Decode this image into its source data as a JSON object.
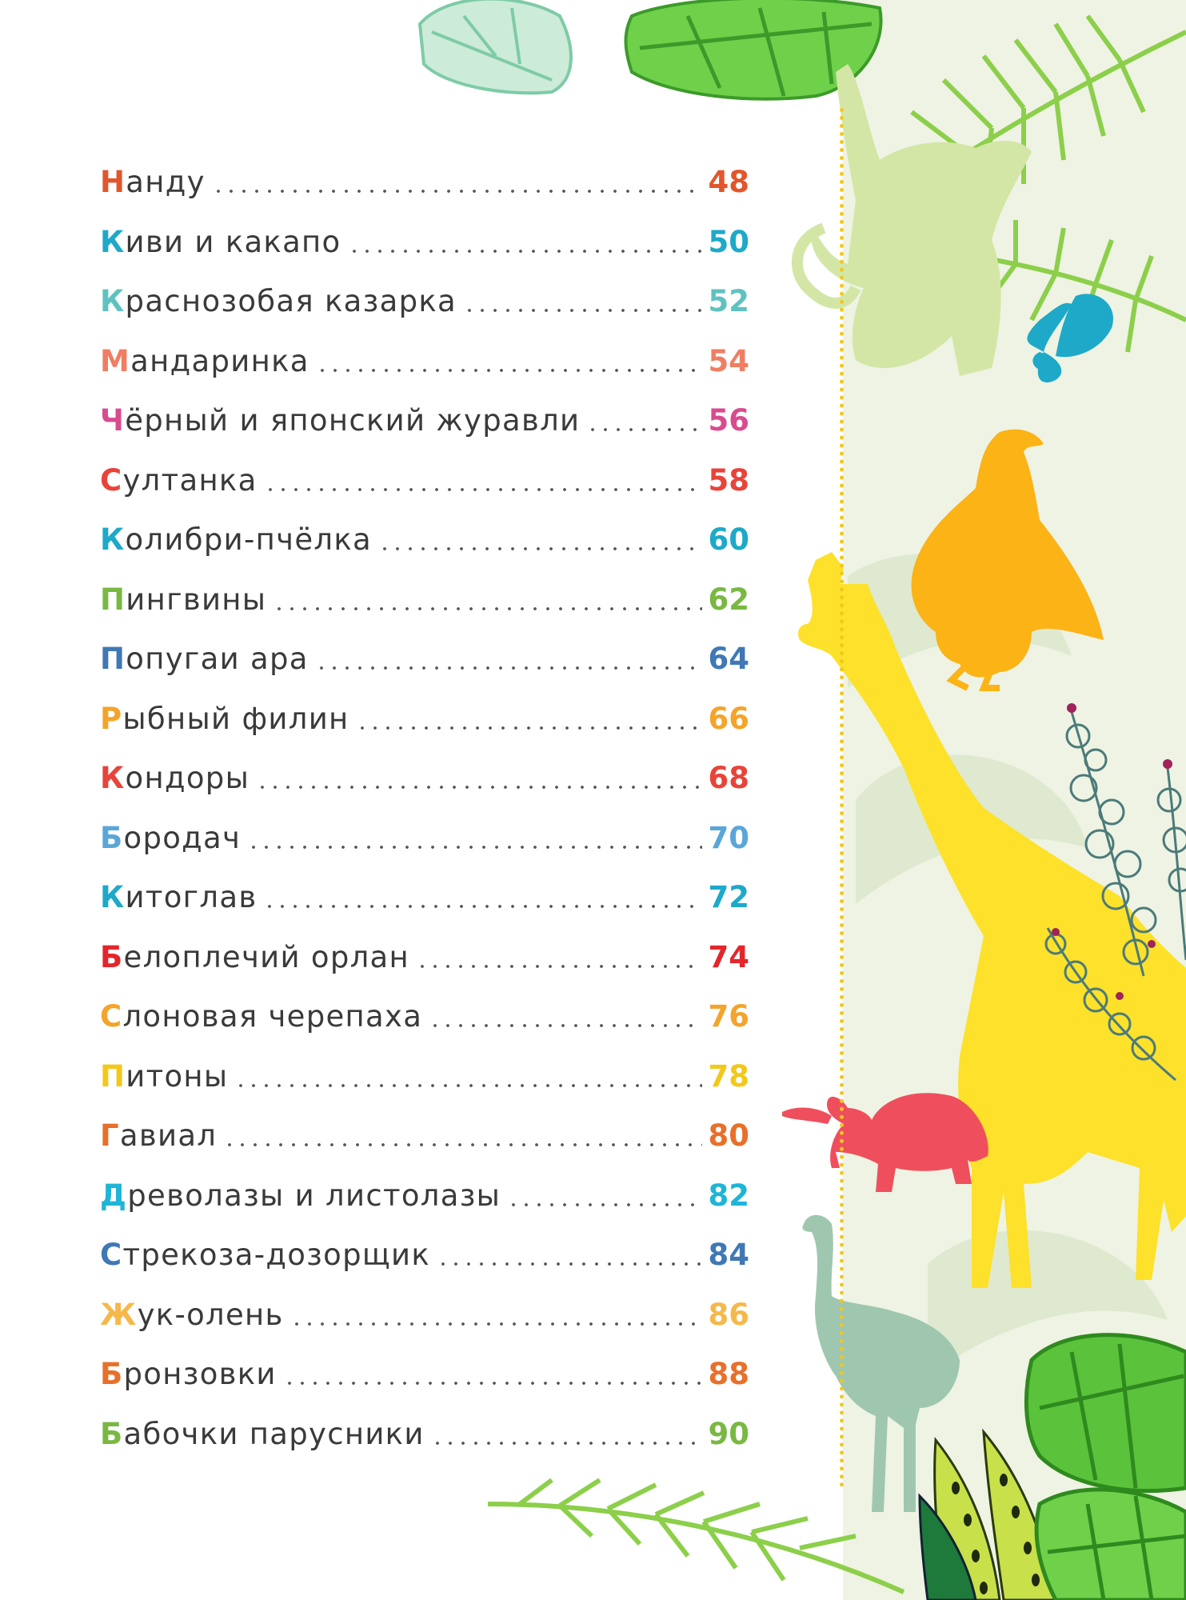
{
  "toc": {
    "entries": [
      {
        "initial": "Н",
        "rest": "анду",
        "page": "48",
        "color": "#e2562b"
      },
      {
        "initial": "К",
        "rest": "иви и какапо",
        "page": "50",
        "color": "#1ea9c9"
      },
      {
        "initial": "К",
        "rest": "раснозобая казарка",
        "page": "52",
        "color": "#5fc2c0"
      },
      {
        "initial": "М",
        "rest": "андаринка",
        "page": "54",
        "color": "#f07e62"
      },
      {
        "initial": "Ч",
        "rest": "ёрный и японский журавли",
        "page": "56",
        "color": "#d94b8f"
      },
      {
        "initial": "С",
        "rest": "ултанка",
        "page": "58",
        "color": "#e8443a"
      },
      {
        "initial": "К",
        "rest": "олибри-пчёлка",
        "page": "60",
        "color": "#1ea9c9"
      },
      {
        "initial": "П",
        "rest": "ингвины",
        "page": "62",
        "color": "#79b842"
      },
      {
        "initial": "П",
        "rest": "опугаи ара",
        "page": "64",
        "color": "#3f78b5"
      },
      {
        "initial": "Р",
        "rest": "ыбный филин",
        "page": "66",
        "color": "#f4a42b"
      },
      {
        "initial": "К",
        "rest": "ондоры",
        "page": "68",
        "color": "#e8443a"
      },
      {
        "initial": "Б",
        "rest": "ородач",
        "page": "70",
        "color": "#5aa6d8"
      },
      {
        "initial": "К",
        "rest": "итоглав",
        "page": "72",
        "color": "#1ea9c9"
      },
      {
        "initial": "Б",
        "rest": "елоплечий орлан",
        "page": "74",
        "color": "#e2262b"
      },
      {
        "initial": "С",
        "rest": "лоновая черепаха",
        "page": "76",
        "color": "#f4a42b"
      },
      {
        "initial": "П",
        "rest": "итоны",
        "page": "78",
        "color": "#f2c81b"
      },
      {
        "initial": "Г",
        "rest": "авиал",
        "page": "80",
        "color": "#e8702a"
      },
      {
        "initial": "Д",
        "rest": "револазы и листолазы",
        "page": "82",
        "color": "#1eb5d6"
      },
      {
        "initial": "С",
        "rest": "трекоза-дозорщик",
        "page": "84",
        "color": "#3f78b5"
      },
      {
        "initial": "Ж",
        "rest": "ук-олень",
        "page": "86",
        "color": "#f5b84a"
      },
      {
        "initial": "Б",
        "rest": "ронзовки",
        "page": "88",
        "color": "#e8702a"
      },
      {
        "initial": "Б",
        "rest": "абочки парусники",
        "page": "90",
        "color": "#79b842"
      }
    ]
  },
  "illustration": {
    "icons": [
      "monkey-silhouette",
      "butterfly-silhouette",
      "eagle-silhouette",
      "giraffe-silhouette",
      "tortoise-silhouette",
      "ostrich-silhouette",
      "monstera-leaf",
      "palm-leaf",
      "eucalyptus-branch",
      "spotted-leaf"
    ],
    "colors": {
      "panel": "#eef3e3",
      "divider": "#f2c81b",
      "monkey": "#d3e6a6",
      "butterfly": "#1ea9c9",
      "eagle": "#fbb315",
      "giraffe": "#fde12a",
      "tortoise": "#ef4f5c",
      "ostrich": "#9fc7b0",
      "leaf_green": "#5bc23c",
      "leaf_pale": "#7ecba6",
      "palm": "#8ccf4a"
    }
  }
}
